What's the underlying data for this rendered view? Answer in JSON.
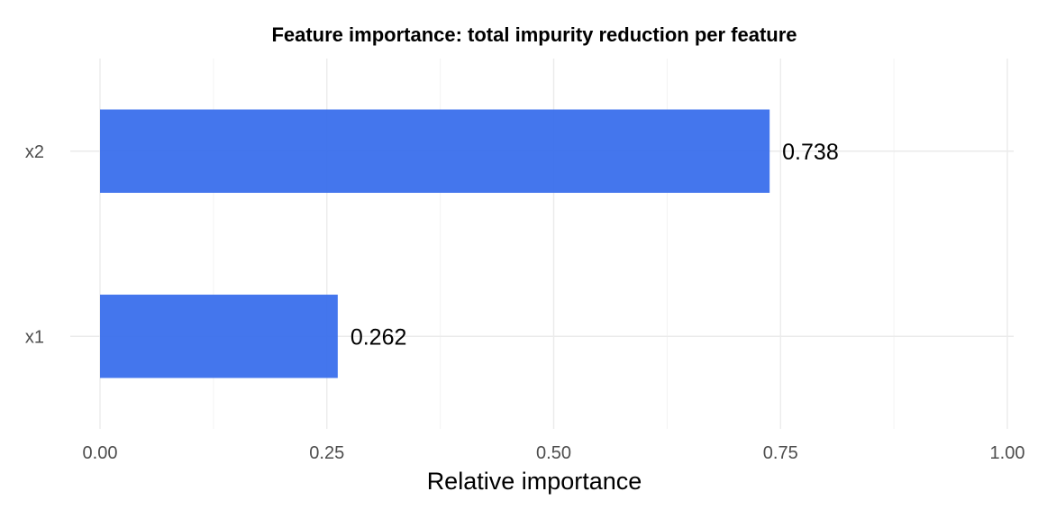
{
  "chart_data": {
    "type": "bar",
    "orientation": "horizontal",
    "title": "Feature importance: total impurity reduction per feature",
    "xlabel": "Relative importance",
    "ylabel": "",
    "categories": [
      "x1",
      "x2"
    ],
    "values": [
      0.262,
      0.738
    ],
    "data_labels": [
      "0.262",
      "0.738"
    ],
    "xlim": [
      0,
      1
    ],
    "x_ticks": [
      0,
      0.25,
      0.5,
      0.75,
      1
    ],
    "x_tick_labels": [
      "0.00",
      "0.25",
      "0.50",
      "0.75",
      "1.00"
    ],
    "grid": true,
    "legend": "none",
    "bar_color": "#3a6fec"
  }
}
